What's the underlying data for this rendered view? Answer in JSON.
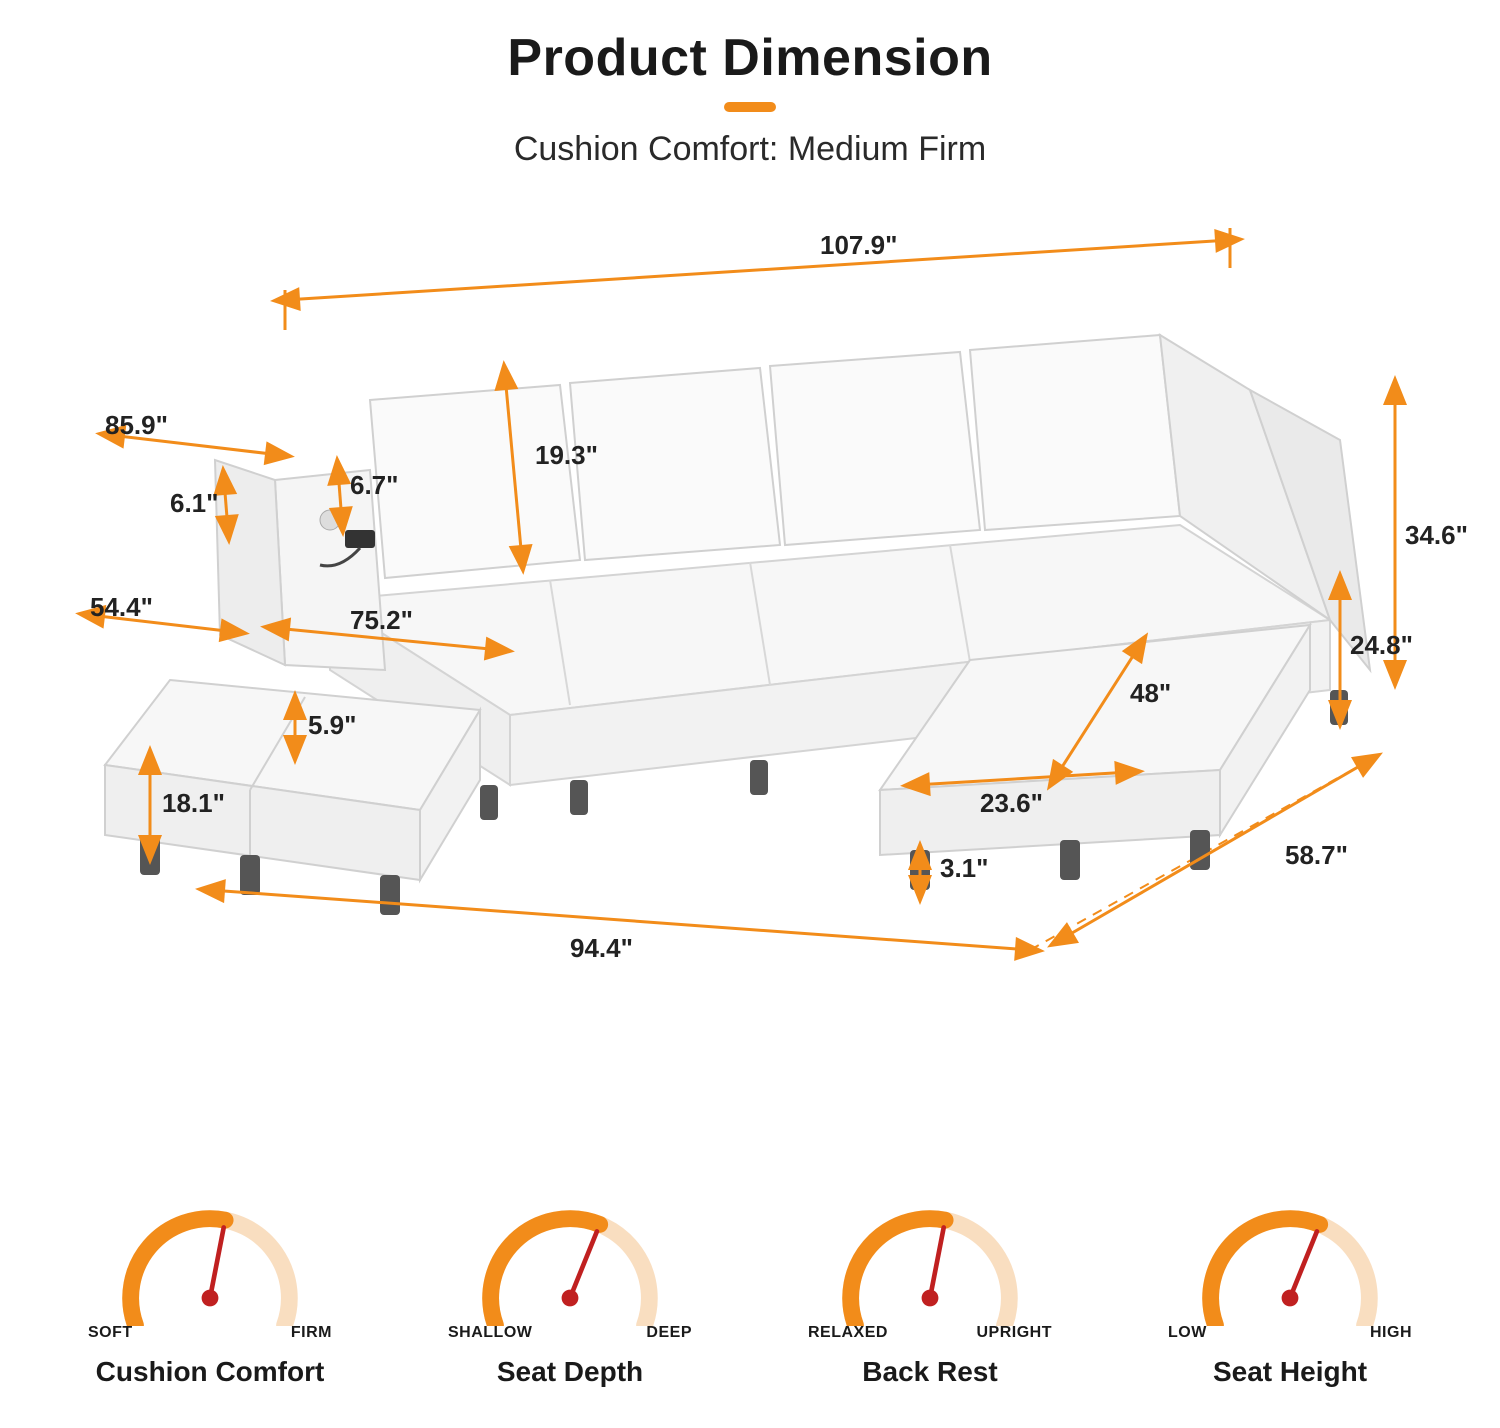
{
  "header": {
    "title": "Product Dimension",
    "subtitle": "Cushion Comfort: Medium Firm",
    "accent_color": "#f28c1a"
  },
  "dimensions": {
    "top_width": "107.9\"",
    "cushion_height": "19.3\"",
    "left_depth_front": "85.9\"",
    "arm_h1": "6.1\"",
    "arm_h2": "6.7\"",
    "left_mid": "54.4\"",
    "inner_depth": "75.2\"",
    "ottoman_gap": "5.9\"",
    "ottoman_h": "18.1\"",
    "bottom_width": "94.4\"",
    "right_height": "34.6\"",
    "seat_h": "24.8\"",
    "right_depth": "58.7\"",
    "leg_h": "3.1\"",
    "chaise_w": "23.6\"",
    "chaise_d": "48\""
  },
  "colors": {
    "arrow": "#f28c1a",
    "sofa_light": "#fafafa",
    "sofa_shadow": "#e8e8e8",
    "sofa_line": "#d4d4d4",
    "leg": "#555555"
  },
  "gauges": [
    {
      "title": "Cushion Comfort",
      "left": "SOFT",
      "right": "FIRM",
      "value": 0.55
    },
    {
      "title": "Seat Depth",
      "left": "SHALLOW",
      "right": "DEEP",
      "value": 0.6
    },
    {
      "title": "Back Rest",
      "left": "RELAXED",
      "right": "UPRIGHT",
      "value": 0.55
    },
    {
      "title": "Seat Height",
      "left": "LOW",
      "right": "HIGH",
      "value": 0.6
    }
  ],
  "gauge_style": {
    "inactive_color": "#f9dec0",
    "active_color": "#f28c1a",
    "needle_color": "#c02020",
    "track_width": 18
  }
}
